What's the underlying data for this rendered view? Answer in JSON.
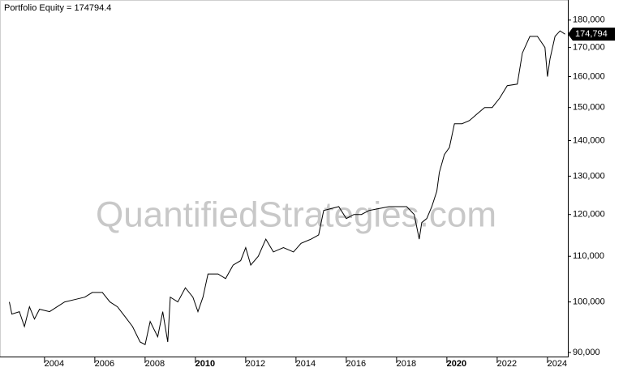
{
  "chart_data": {
    "type": "line",
    "title": "Portfolio Equity = 174794.4",
    "watermark": "QuantifiedStrategies.com",
    "last_value_label": "174,794",
    "log_y": true,
    "color": "#000000",
    "xlim": [
      2002.23,
      2024.81
    ],
    "xticks": [
      2004,
      2006,
      2008,
      2010,
      2012,
      2014,
      2016,
      2018,
      2020,
      2022,
      2024
    ],
    "xticks_bold": [
      2010,
      2020
    ],
    "ylim": [
      89240,
      187700
    ],
    "yticks": [
      {
        "value": 90000,
        "label": "90,000"
      },
      {
        "value": 100000,
        "label": "100,000"
      },
      {
        "value": 110000,
        "label": "110,000"
      },
      {
        "value": 120000,
        "label": "120,000"
      },
      {
        "value": 130000,
        "label": "130,000"
      },
      {
        "value": 140000,
        "label": "140,000"
      },
      {
        "value": 150000,
        "label": "150,000"
      },
      {
        "value": 160000,
        "label": "160,000"
      },
      {
        "value": 170000,
        "label": "170,000"
      },
      {
        "value": 180000,
        "label": "180,000"
      }
    ],
    "x": [
      2002.6,
      2002.7,
      2003.0,
      2003.2,
      2003.4,
      2003.6,
      2003.8,
      2004.2,
      2004.5,
      2004.8,
      2005.2,
      2005.6,
      2005.9,
      2006.3,
      2006.6,
      2006.9,
      2007.2,
      2007.5,
      2007.8,
      2008.0,
      2008.2,
      2008.5,
      2008.7,
      2008.9,
      2009.0,
      2009.3,
      2009.6,
      2009.9,
      2010.1,
      2010.3,
      2010.5,
      2010.9,
      2011.2,
      2011.5,
      2011.8,
      2012.0,
      2012.2,
      2012.5,
      2012.8,
      2013.1,
      2013.5,
      2013.9,
      2014.2,
      2014.6,
      2014.9,
      2015.1,
      2015.4,
      2015.7,
      2016.0,
      2016.3,
      2016.6,
      2016.9,
      2017.3,
      2017.7,
      2018.0,
      2018.4,
      2018.7,
      2018.9,
      2019.0,
      2019.2,
      2019.4,
      2019.6,
      2019.7,
      2019.9,
      2020.1,
      2020.3,
      2020.6,
      2020.9,
      2021.2,
      2021.5,
      2021.8,
      2022.1,
      2022.4,
      2022.8,
      2023.0,
      2023.3,
      2023.6,
      2023.9,
      2024.0,
      2024.1,
      2024.3,
      2024.5,
      2024.7
    ],
    "values": [
      100000,
      97500,
      98000,
      95000,
      99000,
      96500,
      98500,
      98000,
      99000,
      100000,
      100500,
      101000,
      102000,
      102000,
      100000,
      99000,
      97000,
      95000,
      92000,
      91500,
      96000,
      93000,
      98000,
      92000,
      101000,
      100000,
      103000,
      101000,
      98000,
      101000,
      106000,
      106000,
      105000,
      108000,
      109000,
      112000,
      108000,
      110000,
      114000,
      111000,
      112000,
      111000,
      113000,
      114000,
      115000,
      121000,
      121500,
      122000,
      119000,
      120000,
      120000,
      121000,
      121500,
      122000,
      122000,
      122000,
      120000,
      114000,
      118000,
      119000,
      122000,
      126000,
      131000,
      136000,
      138000,
      145000,
      145000,
      146000,
      148000,
      150000,
      150000,
      153000,
      157000,
      157500,
      168000,
      174000,
      174000,
      170000,
      160000,
      166000,
      174000,
      176000,
      174794.4
    ]
  }
}
